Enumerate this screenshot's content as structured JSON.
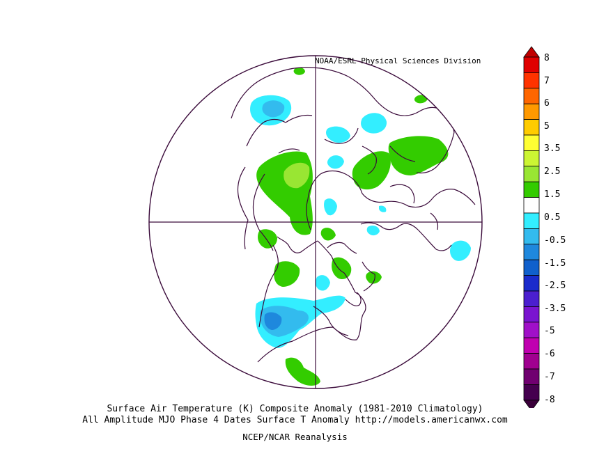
{
  "map": {
    "credit": "NOAA/ESRL Physical Sciences Division",
    "caption_line1": "Surface Air Temperature (K) Composite Anomaly (1981-2010 Climatology)",
    "caption_line2": "All Amplitude MJO Phase 4 Dates Surface T Anomaly http://models.americanwx.com",
    "caption_line3": "NCEP/NCAR Reanalysis",
    "projection": "north-polar-stereographic",
    "outline_color": "#3a0a3a"
  },
  "colorbar": {
    "labels": [
      "8",
      "7",
      "6",
      "5",
      "3.5",
      "2.5",
      "1.5",
      "0.5",
      "-0.5",
      "-1.5",
      "-2.5",
      "-3.5",
      "-5",
      "-6",
      "-7",
      "-8"
    ],
    "colors": [
      "#e00000",
      "#ff3300",
      "#ff6600",
      "#ff9900",
      "#ffcc00",
      "#ffff33",
      "#ccf533",
      "#99e633",
      "#33cc00",
      "#ffffff",
      "#33eeff",
      "#33bbee",
      "#1e88dd",
      "#1060cc",
      "#1a2bcc",
      "#4b1fcf",
      "#7a14d0",
      "#a010c8",
      "#c000b0",
      "#a00090",
      "#700070",
      "#45004f"
    ],
    "top_arrow_color": "#c00000",
    "bottom_arrow_color": "#3a003a"
  },
  "anomaly_palette": {
    "warm_0_5_to_1_5": "#33cc00",
    "warm_1_5_to_2_5": "#99e633",
    "cool_0_5_to_1_5": "#33eeff",
    "cool_1_5_to_2_5": "#33bbee",
    "cool_2_5_to_3_5": "#1e88dd"
  }
}
